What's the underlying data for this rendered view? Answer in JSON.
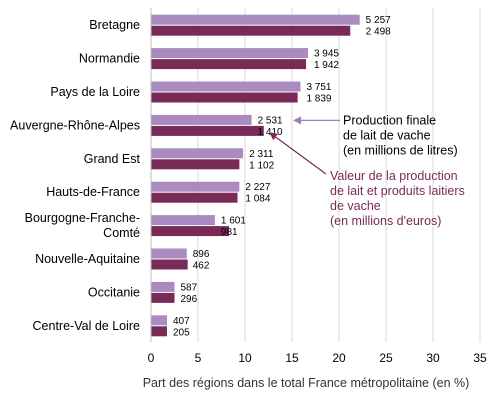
{
  "chart_data": {
    "type": "bar",
    "orientation": "horizontal",
    "categories": [
      [
        "Bretagne"
      ],
      [
        "Normandie"
      ],
      [
        "Pays de la Loire"
      ],
      [
        "Auvergne-Rhône-Alpes"
      ],
      [
        "Grand Est"
      ],
      [
        "Hauts-de-France"
      ],
      [
        "Bourgogne-Franche-",
        "Comté"
      ],
      [
        "Nouvelle-Aquitaine"
      ],
      [
        "Occitanie"
      ],
      [
        "Centre-Val de Loire"
      ]
    ],
    "series": [
      {
        "name": "Production finale de lait de vache (en millions de litres)",
        "color": "#a98bbf",
        "values": [
          22.2,
          16.7,
          15.9,
          10.7,
          9.8,
          9.4,
          6.8,
          3.8,
          2.5,
          1.7
        ],
        "labels": [
          "5 257",
          "3 945",
          "3 751",
          "2 531",
          "2 311",
          "2 227",
          "1 601",
          "896",
          "587",
          "407"
        ]
      },
      {
        "name": "Valeur de la production de lait et produits laitiers de vache (en millions d'euros)",
        "color": "#7a2a56",
        "values": [
          21.2,
          16.5,
          15.6,
          12.0,
          9.4,
          9.2,
          8.3,
          3.9,
          2.5,
          1.7
        ],
        "labels": [
          "2 498",
          "1 942",
          "1 839",
          "1 410",
          "1 102",
          "1 084",
          "981",
          "462",
          "296",
          "205"
        ]
      }
    ],
    "xlim": [
      0,
      35
    ],
    "xticks": [
      "0",
      "5",
      "10",
      "15",
      "20",
      "25",
      "30",
      "35"
    ],
    "xlabel": "Part des régions dans le total France métropolitaine (en %)",
    "grid": true,
    "annotations": [
      {
        "lines": [
          "Production finale",
          "de lait de vache",
          "(en millions de litres)"
        ],
        "color": "#000000",
        "arrow_color": "#9a7fb5",
        "target": "series-0-category-3"
      },
      {
        "lines": [
          "Valeur de la production",
          "de lait et produits laitiers",
          "de vache",
          "(en millions d'euros)"
        ],
        "color": "#7a2a56",
        "arrow_color": "#7a2a56",
        "target": "series-1-category-3"
      }
    ]
  }
}
